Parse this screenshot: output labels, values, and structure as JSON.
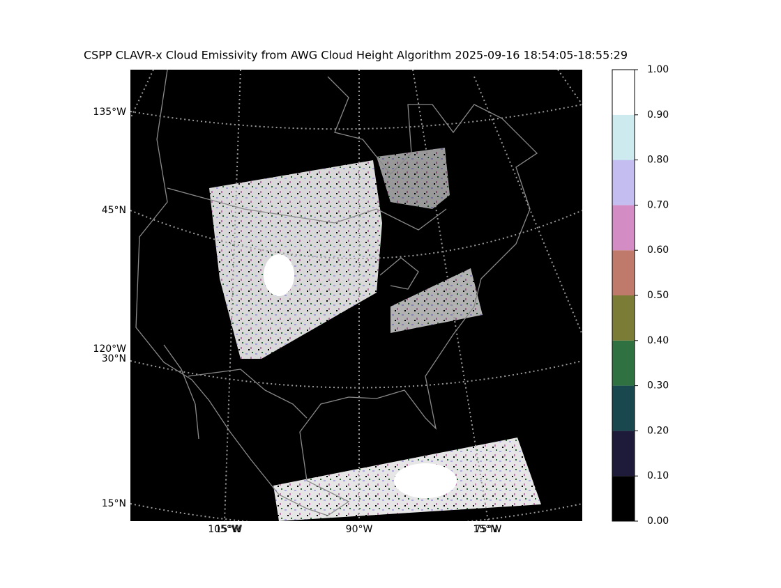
{
  "title": "CSPP CLAVR-x Cloud Emissivity from AWG Cloud Height Algorithm 2025-09-16 18:54:05-18:55:29",
  "map": {
    "left_labels": [
      "135°W",
      "45°N",
      "120°W",
      "30°N",
      "15°N"
    ],
    "bottom_labels": [
      "105°W",
      "15°W",
      "90°W",
      "75°W",
      "15°N"
    ]
  },
  "colorbar": {
    "colors": [
      "#000000",
      "#1e1b3a",
      "#19484f",
      "#2f7140",
      "#7b7d37",
      "#c07a6c",
      "#d38dc4",
      "#c3bdf0",
      "#cdeaee",
      "#ffffff"
    ],
    "ticks": [
      {
        "value": 0,
        "label": "0.00"
      },
      {
        "value": 0.1,
        "label": "0.10"
      },
      {
        "value": 0.2,
        "label": "0.20"
      },
      {
        "value": 0.3,
        "label": "0.30"
      },
      {
        "value": 0.4,
        "label": "0.40"
      },
      {
        "value": 0.5,
        "label": "0.50"
      },
      {
        "value": 0.6,
        "label": "0.60"
      },
      {
        "value": 0.7,
        "label": "0.70"
      },
      {
        "value": 0.8,
        "label": "0.80"
      },
      {
        "value": 0.9,
        "label": "0.90"
      },
      {
        "value": 1,
        "label": "1.00"
      }
    ]
  }
}
